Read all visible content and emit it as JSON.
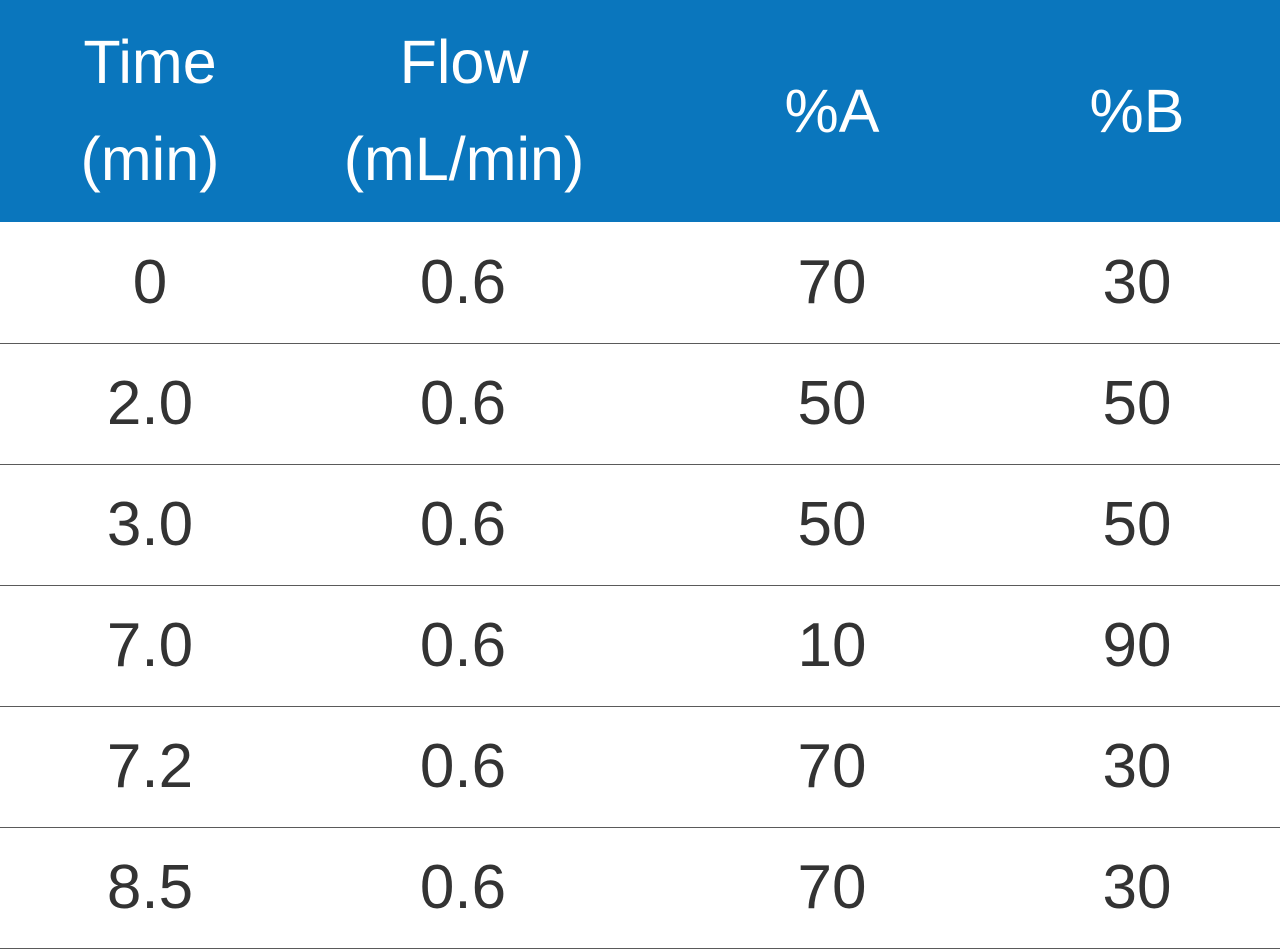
{
  "table": {
    "header_color": "#0a76bd",
    "headers": [
      {
        "line1": "Time",
        "line2": "(min)"
      },
      {
        "line1": "Flow",
        "line2": "(mL/min)"
      },
      {
        "line1": "%A",
        "line2": ""
      },
      {
        "line1": "%B",
        "line2": ""
      }
    ],
    "rows": [
      [
        "0",
        "0.6",
        "70",
        "30"
      ],
      [
        "2.0",
        "0.6",
        "50",
        "50"
      ],
      [
        "3.0",
        "0.6",
        "50",
        "50"
      ],
      [
        "7.0",
        "0.6",
        "10",
        "90"
      ],
      [
        "7.2",
        "0.6",
        "70",
        "30"
      ],
      [
        "8.5",
        "0.6",
        "70",
        "30"
      ]
    ]
  }
}
